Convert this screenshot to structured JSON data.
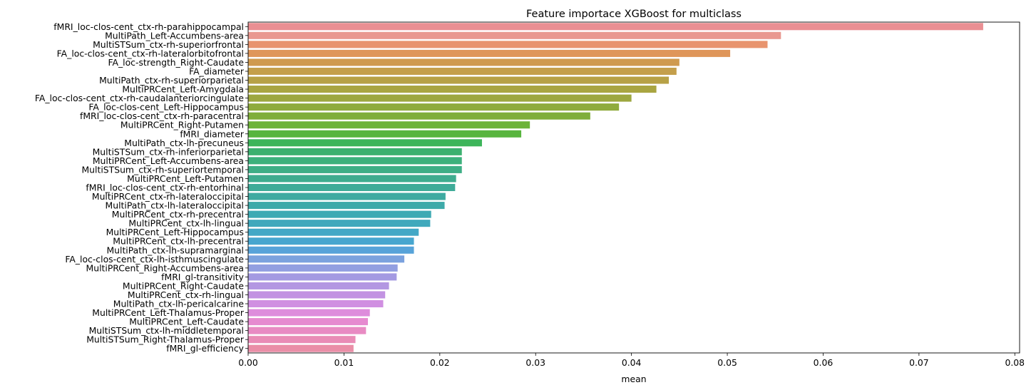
{
  "chart_data": {
    "type": "bar",
    "orientation": "horizontal",
    "title": "Feature importace XGBoost for multiclass",
    "xlabel": "mean",
    "ylabel": "",
    "xlim": [
      0,
      0.0805
    ],
    "xticks": [
      "0.00",
      "0.01",
      "0.02",
      "0.03",
      "0.04",
      "0.05",
      "0.06",
      "0.07",
      "0.08"
    ],
    "grid": false,
    "legend": "none",
    "categories": [
      "fMRI_loc-clos-cent_ctx-rh-parahippocampal",
      "MultiPath_Left-Accumbens-area",
      "MultiSTSum_ctx-rh-superiorfrontal",
      "FA_loc-clos-cent_ctx-rh-lateralorbitofrontal",
      "FA_loc-strength_Right-Caudate",
      "FA_diameter",
      "MultiPath_ctx-rh-superiorparietal",
      "MultiPRCent_Left-Amygdala",
      "FA_loc-clos-cent_ctx-rh-caudalanteriorcingulate",
      "FA_loc-clos-cent_Left-Hippocampus",
      "fMRI_loc-clos-cent_ctx-rh-paracentral",
      "MultiPRCent_Right-Putamen",
      "fMRI_diameter",
      "MultiPath_ctx-lh-precuneus",
      "MultiSTSum_ctx-rh-inferiorparietal",
      "MultiPRCent_Left-Accumbens-area",
      "MultiSTSum_ctx-rh-superiortemporal",
      "MultiPRCent_Left-Putamen",
      "fMRI_loc-clos-cent_ctx-rh-entorhinal",
      "MultiPRCent_ctx-rh-lateraloccipital",
      "MultiPath_ctx-lh-lateraloccipital",
      "MultiPRCent_ctx-rh-precentral",
      "MultiPRCent_ctx-lh-lingual",
      "MultiPRCent_Left-Hippocampus",
      "MultiPRCent_ctx-lh-precentral",
      "MultiPath_ctx-lh-supramarginal",
      "FA_loc-clos-cent_ctx-lh-isthmuscingulate",
      "MultiPRCent_Right-Accumbens-area",
      "fMRI_gl-transitivity",
      "MultiPRCent_Right-Caudate",
      "MultiPRCent_ctx-rh-lingual",
      "MultiPath_ctx-lh-pericalcarine",
      "MultiPRCent_Left-Thalamus-Proper",
      "MultiPRCent_Left-Caudate",
      "MultiSTSum_ctx-lh-middletemporal",
      "MultiSTSum_Right-Thalamus-Proper",
      "fMRI_gl-efficiency"
    ],
    "values": [
      0.0767,
      0.0556,
      0.0542,
      0.0503,
      0.045,
      0.0447,
      0.0439,
      0.0426,
      0.04,
      0.0387,
      0.0357,
      0.0294,
      0.0285,
      0.0244,
      0.0223,
      0.0223,
      0.0223,
      0.0217,
      0.0216,
      0.0206,
      0.0205,
      0.0191,
      0.019,
      0.0178,
      0.0173,
      0.0173,
      0.0163,
      0.0156,
      0.0155,
      0.0147,
      0.0143,
      0.0141,
      0.0127,
      0.0125,
      0.0123,
      0.0112,
      0.011
    ],
    "colors": [
      "#ea8f93",
      "#e99890",
      "#e8946e",
      "#df965a",
      "#cf9a4f",
      "#c49f4b",
      "#b7a146",
      "#a9a541",
      "#9da73f",
      "#8fab3c",
      "#7fae3b",
      "#6db33a",
      "#58b53e",
      "#3db55a",
      "#3cb06f",
      "#3db07c",
      "#3eae86",
      "#3eac8f",
      "#3eab98",
      "#3eaaa1",
      "#3eaaa9",
      "#3eaab3",
      "#40a9bc",
      "#43a8c6",
      "#47a6cf",
      "#57a3d9",
      "#7ba2de",
      "#929fe1",
      "#a49ae2",
      "#b397e2",
      "#c293e2",
      "#d08fe1",
      "#de8cdc",
      "#e68ad0",
      "#e88bc3",
      "#e98cb6",
      "#ea8ea7"
    ]
  }
}
